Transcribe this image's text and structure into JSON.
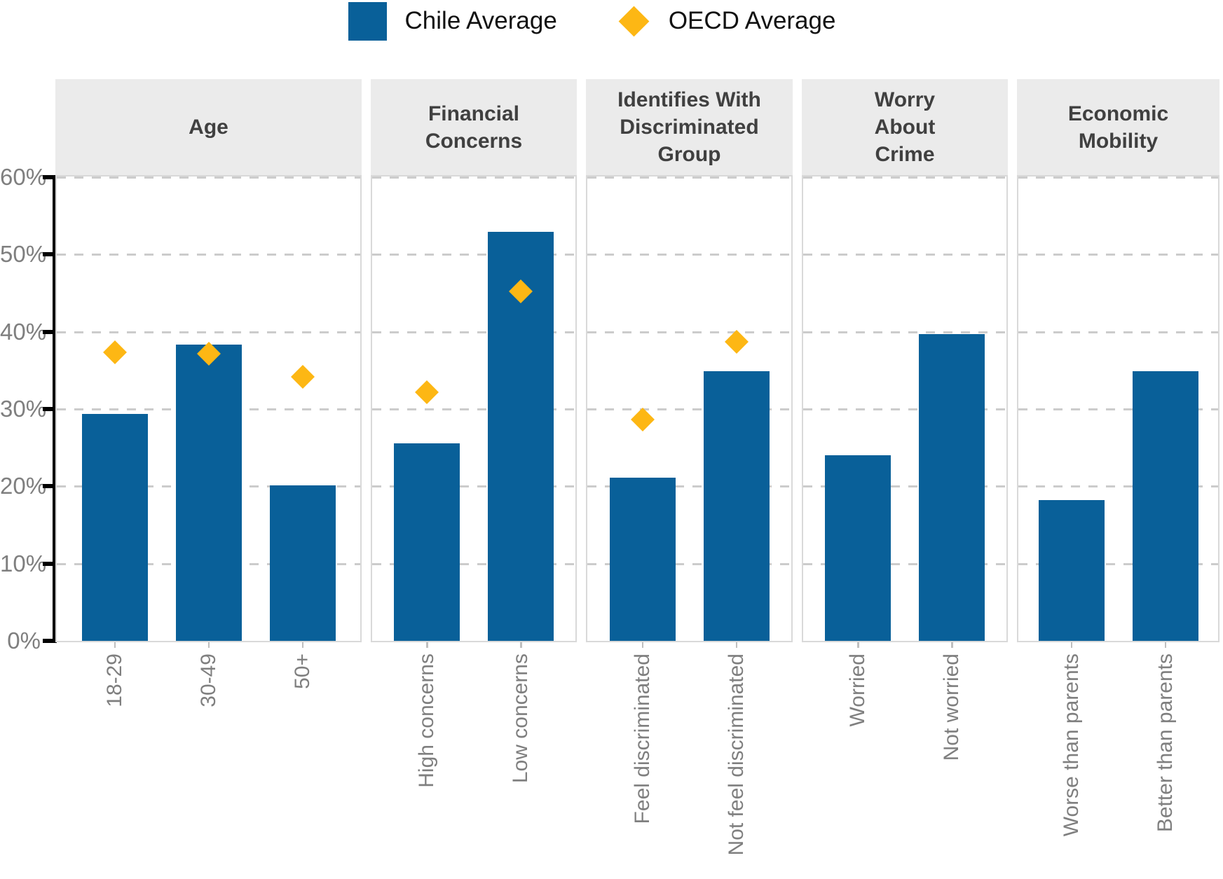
{
  "legend": {
    "items": [
      {
        "label": "Chile Average",
        "marker": "square",
        "color": "#096099"
      },
      {
        "label": "OECD Average",
        "marker": "diamond",
        "color": "#FDB714"
      }
    ]
  },
  "chart_data": {
    "type": "bar",
    "subtype": "faceted bar chart with point overlay",
    "title": "",
    "ylabel": "",
    "ylim": [
      0,
      60
    ],
    "ytick_values": [
      0,
      10,
      20,
      30,
      40,
      50,
      60
    ],
    "ytick_labels": [
      "0%",
      "10%",
      "20%",
      "30%",
      "40%",
      "50%",
      "60%"
    ],
    "grid": "horizontal dashed gridlines, white panel background, grey facet strips on top",
    "legend_position": "top-center",
    "series_meta": [
      {
        "name": "Chile Average",
        "type": "bar",
        "color": "#096099"
      },
      {
        "name": "OECD Average",
        "type": "diamond-point",
        "color": "#FDB714"
      }
    ],
    "facets": [
      {
        "title_lines": [
          "Age"
        ],
        "categories": [
          "18-29",
          "30-49",
          "50+"
        ],
        "chile_average": [
          29.4,
          38.3,
          20.1
        ],
        "oecd_average": [
          37.3,
          37.2,
          34.2
        ]
      },
      {
        "title_lines": [
          "Financial",
          "Concerns"
        ],
        "categories": [
          "High concerns",
          "Low concerns"
        ],
        "chile_average": [
          25.6,
          52.9
        ],
        "oecd_average": [
          32.2,
          45.2
        ]
      },
      {
        "title_lines": [
          "Identifies With",
          "Discriminated",
          "Group"
        ],
        "categories": [
          "Feel discriminated",
          "Not feel discriminated"
        ],
        "chile_average": [
          21.1,
          34.9
        ],
        "oecd_average": [
          28.6,
          38.7
        ]
      },
      {
        "title_lines": [
          "Worry",
          "About",
          "Crime"
        ],
        "categories": [
          "Worried",
          "Not worried"
        ],
        "chile_average": [
          24.0,
          39.7
        ],
        "oecd_average": [
          null,
          null
        ]
      },
      {
        "title_lines": [
          "Economic",
          "Mobility"
        ],
        "categories": [
          "Worse than parents",
          "Better than parents"
        ],
        "chile_average": [
          18.2,
          34.9
        ],
        "oecd_average": [
          null,
          null
        ]
      }
    ],
    "colors": {
      "bar": "#096099",
      "diamond": "#FDB714",
      "header_bg": "#EBEBEB",
      "header_text": "#404040",
      "axis_text": "#7F7F7F",
      "gridline": "#CCCCCC",
      "panel_border": "#D9D9D9",
      "axis_line": "#000000"
    }
  }
}
